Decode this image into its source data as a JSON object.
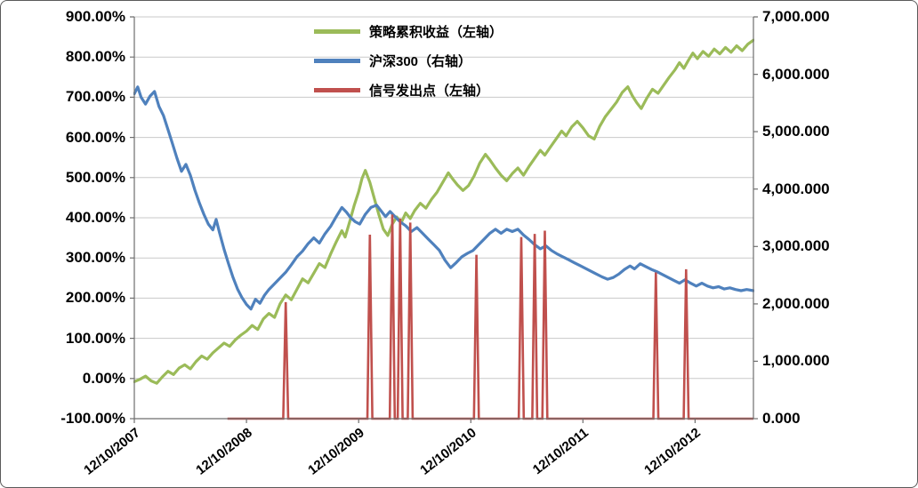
{
  "chart_data": {
    "type": "line",
    "title": "",
    "legend": {
      "position": "top-center"
    },
    "colors": {
      "grid": "#c9c9c9",
      "axis": "#6e6e6e",
      "text": "#000000",
      "background": "#ffffff"
    },
    "x_axis": {
      "tick_labels": [
        "12/10/2007",
        "12/10/2008",
        "12/10/2009",
        "12/10/2010",
        "12/10/2011",
        "12/10/2012"
      ],
      "tick_years": [
        0,
        1,
        2,
        3,
        4,
        5
      ],
      "min_years": 0,
      "max_years": 5.52
    },
    "left_axis": {
      "unit": "%",
      "min": -100,
      "max": 900,
      "tick_values": [
        900,
        800,
        700,
        600,
        500,
        400,
        300,
        200,
        100,
        0,
        -100
      ],
      "tick_labels": [
        "900.00%",
        "800.00%",
        "700.00%",
        "600.00%",
        "500.00%",
        "400.00%",
        "300.00%",
        "200.00%",
        "100.00%",
        "0.00%",
        "-100.00%"
      ]
    },
    "right_axis": {
      "min": 0,
      "max": 7000,
      "tick_values": [
        7000,
        6000,
        5000,
        4000,
        3000,
        2000,
        1000,
        0
      ],
      "tick_labels": [
        "7,000.000",
        "6,000.000",
        "5,000.000",
        "4,000.000",
        "3,000.000",
        "2,000.000",
        "1,000.000",
        "0.000"
      ]
    },
    "series": [
      {
        "name": "策略累积收益（左轴）",
        "axis": "left",
        "type": "line",
        "color": "#9BBB59",
        "points": [
          [
            0.0,
            -8
          ],
          [
            0.05,
            -2
          ],
          [
            0.1,
            6
          ],
          [
            0.15,
            -6
          ],
          [
            0.2,
            -12
          ],
          [
            0.25,
            4
          ],
          [
            0.3,
            18
          ],
          [
            0.35,
            10
          ],
          [
            0.4,
            26
          ],
          [
            0.45,
            34
          ],
          [
            0.5,
            24
          ],
          [
            0.55,
            42
          ],
          [
            0.6,
            56
          ],
          [
            0.65,
            48
          ],
          [
            0.7,
            64
          ],
          [
            0.75,
            76
          ],
          [
            0.8,
            88
          ],
          [
            0.85,
            80
          ],
          [
            0.9,
            96
          ],
          [
            0.95,
            108
          ],
          [
            1.0,
            118
          ],
          [
            1.05,
            132
          ],
          [
            1.1,
            122
          ],
          [
            1.15,
            148
          ],
          [
            1.2,
            162
          ],
          [
            1.25,
            152
          ],
          [
            1.3,
            186
          ],
          [
            1.35,
            208
          ],
          [
            1.4,
            196
          ],
          [
            1.45,
            222
          ],
          [
            1.5,
            248
          ],
          [
            1.55,
            238
          ],
          [
            1.6,
            262
          ],
          [
            1.65,
            286
          ],
          [
            1.7,
            276
          ],
          [
            1.75,
            310
          ],
          [
            1.8,
            340
          ],
          [
            1.85,
            368
          ],
          [
            1.88,
            352
          ],
          [
            1.92,
            390
          ],
          [
            1.96,
            430
          ],
          [
            2.0,
            465
          ],
          [
            2.03,
            498
          ],
          [
            2.06,
            518
          ],
          [
            2.1,
            488
          ],
          [
            2.14,
            448
          ],
          [
            2.18,
            408
          ],
          [
            2.22,
            372
          ],
          [
            2.26,
            356
          ],
          [
            2.3,
            384
          ],
          [
            2.34,
            402
          ],
          [
            2.38,
            388
          ],
          [
            2.42,
            412
          ],
          [
            2.46,
            398
          ],
          [
            2.5,
            418
          ],
          [
            2.55,
            436
          ],
          [
            2.6,
            424
          ],
          [
            2.65,
            446
          ],
          [
            2.7,
            464
          ],
          [
            2.75,
            488
          ],
          [
            2.8,
            512
          ],
          [
            2.84,
            496
          ],
          [
            2.88,
            482
          ],
          [
            2.93,
            468
          ],
          [
            2.98,
            480
          ],
          [
            3.03,
            504
          ],
          [
            3.08,
            536
          ],
          [
            3.13,
            558
          ],
          [
            3.17,
            544
          ],
          [
            3.22,
            524
          ],
          [
            3.27,
            506
          ],
          [
            3.32,
            492
          ],
          [
            3.37,
            510
          ],
          [
            3.42,
            524
          ],
          [
            3.47,
            506
          ],
          [
            3.52,
            528
          ],
          [
            3.57,
            548
          ],
          [
            3.62,
            568
          ],
          [
            3.66,
            556
          ],
          [
            3.71,
            576
          ],
          [
            3.76,
            596
          ],
          [
            3.81,
            616
          ],
          [
            3.85,
            604
          ],
          [
            3.9,
            626
          ],
          [
            3.95,
            640
          ],
          [
            4.0,
            624
          ],
          [
            4.05,
            604
          ],
          [
            4.1,
            596
          ],
          [
            4.15,
            628
          ],
          [
            4.2,
            652
          ],
          [
            4.25,
            670
          ],
          [
            4.3,
            688
          ],
          [
            4.35,
            712
          ],
          [
            4.4,
            726
          ],
          [
            4.44,
            704
          ],
          [
            4.48,
            686
          ],
          [
            4.52,
            672
          ],
          [
            4.57,
            698
          ],
          [
            4.62,
            720
          ],
          [
            4.67,
            710
          ],
          [
            4.72,
            730
          ],
          [
            4.77,
            750
          ],
          [
            4.82,
            768
          ],
          [
            4.86,
            786
          ],
          [
            4.9,
            772
          ],
          [
            4.94,
            792
          ],
          [
            4.98,
            810
          ],
          [
            5.02,
            796
          ],
          [
            5.07,
            814
          ],
          [
            5.12,
            802
          ],
          [
            5.17,
            820
          ],
          [
            5.22,
            808
          ],
          [
            5.27,
            824
          ],
          [
            5.32,
            812
          ],
          [
            5.37,
            828
          ],
          [
            5.42,
            816
          ],
          [
            5.47,
            832
          ],
          [
            5.52,
            842
          ]
        ]
      },
      {
        "name": "沪深300（右轴）",
        "axis": "right",
        "type": "line",
        "color": "#4F81BD",
        "points": [
          [
            0.0,
            5660
          ],
          [
            0.03,
            5780
          ],
          [
            0.06,
            5600
          ],
          [
            0.1,
            5480
          ],
          [
            0.14,
            5620
          ],
          [
            0.18,
            5700
          ],
          [
            0.22,
            5440
          ],
          [
            0.26,
            5280
          ],
          [
            0.3,
            5040
          ],
          [
            0.34,
            4790
          ],
          [
            0.38,
            4540
          ],
          [
            0.42,
            4310
          ],
          [
            0.46,
            4430
          ],
          [
            0.5,
            4240
          ],
          [
            0.54,
            3980
          ],
          [
            0.58,
            3760
          ],
          [
            0.62,
            3560
          ],
          [
            0.66,
            3390
          ],
          [
            0.7,
            3290
          ],
          [
            0.73,
            3470
          ],
          [
            0.76,
            3240
          ],
          [
            0.8,
            2950
          ],
          [
            0.84,
            2700
          ],
          [
            0.88,
            2460
          ],
          [
            0.92,
            2260
          ],
          [
            0.96,
            2110
          ],
          [
            1.0,
            1990
          ],
          [
            1.04,
            1910
          ],
          [
            1.08,
            2080
          ],
          [
            1.12,
            2010
          ],
          [
            1.16,
            2150
          ],
          [
            1.2,
            2250
          ],
          [
            1.25,
            2350
          ],
          [
            1.3,
            2450
          ],
          [
            1.35,
            2550
          ],
          [
            1.4,
            2680
          ],
          [
            1.45,
            2820
          ],
          [
            1.5,
            2920
          ],
          [
            1.55,
            3050
          ],
          [
            1.6,
            3150
          ],
          [
            1.65,
            3060
          ],
          [
            1.7,
            3220
          ],
          [
            1.75,
            3350
          ],
          [
            1.8,
            3520
          ],
          [
            1.85,
            3680
          ],
          [
            1.89,
            3600
          ],
          [
            1.93,
            3500
          ],
          [
            1.97,
            3430
          ],
          [
            2.01,
            3390
          ],
          [
            2.06,
            3560
          ],
          [
            2.11,
            3680
          ],
          [
            2.16,
            3720
          ],
          [
            2.2,
            3620
          ],
          [
            2.24,
            3520
          ],
          [
            2.28,
            3610
          ],
          [
            2.32,
            3530
          ],
          [
            2.37,
            3430
          ],
          [
            2.42,
            3360
          ],
          [
            2.47,
            3260
          ],
          [
            2.52,
            3330
          ],
          [
            2.57,
            3230
          ],
          [
            2.62,
            3130
          ],
          [
            2.67,
            3030
          ],
          [
            2.72,
            2930
          ],
          [
            2.77,
            2760
          ],
          [
            2.82,
            2630
          ],
          [
            2.87,
            2720
          ],
          [
            2.92,
            2820
          ],
          [
            2.97,
            2880
          ],
          [
            3.02,
            2930
          ],
          [
            3.07,
            3030
          ],
          [
            3.12,
            3130
          ],
          [
            3.17,
            3230
          ],
          [
            3.22,
            3300
          ],
          [
            3.27,
            3230
          ],
          [
            3.32,
            3300
          ],
          [
            3.37,
            3260
          ],
          [
            3.42,
            3300
          ],
          [
            3.47,
            3200
          ],
          [
            3.52,
            3120
          ],
          [
            3.57,
            3030
          ],
          [
            3.62,
            2960
          ],
          [
            3.67,
            3010
          ],
          [
            3.72,
            2930
          ],
          [
            3.77,
            2870
          ],
          [
            3.82,
            2820
          ],
          [
            3.87,
            2770
          ],
          [
            3.92,
            2720
          ],
          [
            3.97,
            2670
          ],
          [
            4.02,
            2620
          ],
          [
            4.07,
            2570
          ],
          [
            4.12,
            2520
          ],
          [
            4.17,
            2470
          ],
          [
            4.22,
            2430
          ],
          [
            4.27,
            2460
          ],
          [
            4.32,
            2520
          ],
          [
            4.37,
            2600
          ],
          [
            4.42,
            2660
          ],
          [
            4.46,
            2610
          ],
          [
            4.51,
            2700
          ],
          [
            4.56,
            2650
          ],
          [
            4.61,
            2600
          ],
          [
            4.66,
            2560
          ],
          [
            4.71,
            2510
          ],
          [
            4.76,
            2460
          ],
          [
            4.81,
            2410
          ],
          [
            4.86,
            2360
          ],
          [
            4.91,
            2420
          ],
          [
            4.96,
            2360
          ],
          [
            5.01,
            2310
          ],
          [
            5.06,
            2360
          ],
          [
            5.11,
            2310
          ],
          [
            5.16,
            2280
          ],
          [
            5.21,
            2300
          ],
          [
            5.26,
            2260
          ],
          [
            5.31,
            2280
          ],
          [
            5.36,
            2250
          ],
          [
            5.41,
            2230
          ],
          [
            5.46,
            2250
          ],
          [
            5.52,
            2230
          ]
        ]
      },
      {
        "name": "信号发出点（左轴）",
        "axis": "left",
        "type": "spikes",
        "color": "#C0504D",
        "baseline": -100,
        "baseline_range": [
          0.83,
          5.52
        ],
        "spike_half_width": 0.022,
        "spikes": [
          [
            1.35,
            190
          ],
          [
            2.1,
            358
          ],
          [
            2.3,
            408
          ],
          [
            2.37,
            398
          ],
          [
            2.46,
            388
          ],
          [
            3.05,
            308
          ],
          [
            3.45,
            352
          ],
          [
            3.57,
            360
          ],
          [
            3.66,
            368
          ],
          [
            4.65,
            264
          ],
          [
            4.92,
            272
          ]
        ]
      }
    ]
  }
}
